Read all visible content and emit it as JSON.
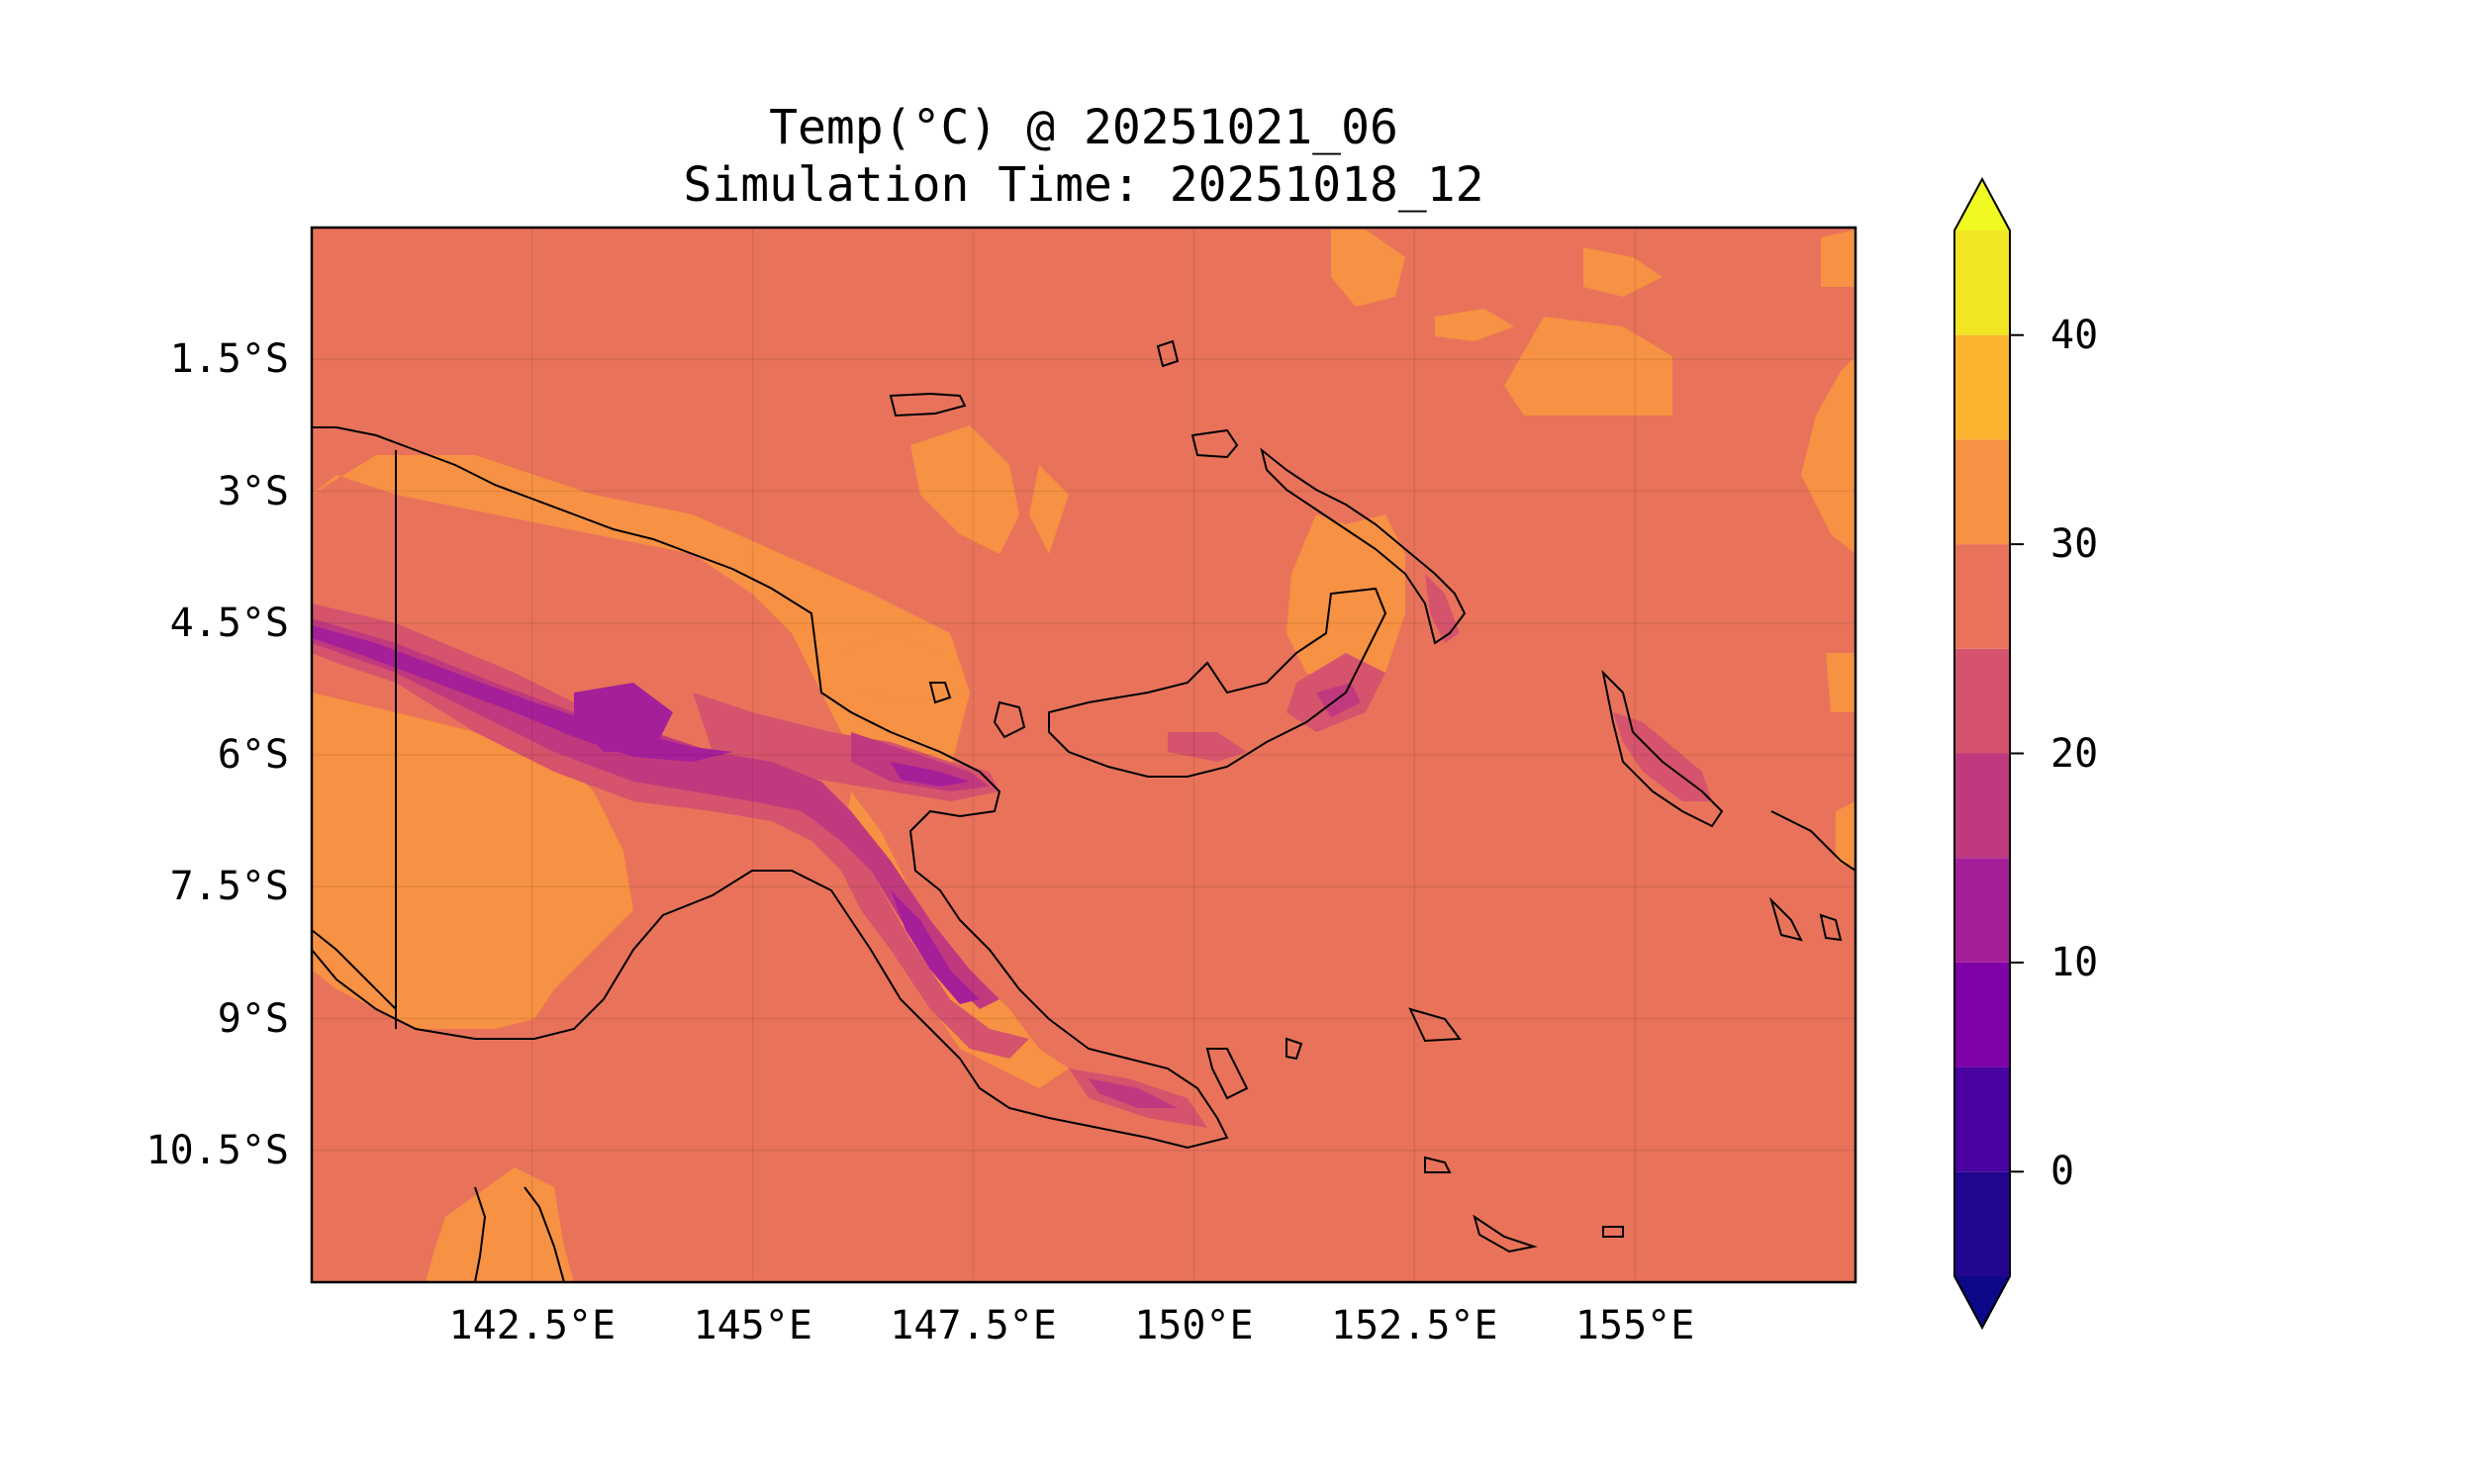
{
  "title_line1": "Temp(°C) @ 20251021_06",
  "title_line2": "Simulation Time: 20251018_12",
  "chart_data": {
    "type": "heatmap",
    "map_extent": {
      "lon": [
        140.0,
        157.5
      ],
      "lat": [
        -12.0,
        0.0
      ]
    },
    "xticks": [
      {
        "value": 142.5,
        "label": "142.5°E"
      },
      {
        "value": 145.0,
        "label": "145°E"
      },
      {
        "value": 147.5,
        "label": "147.5°E"
      },
      {
        "value": 150.0,
        "label": "150°E"
      },
      {
        "value": 152.5,
        "label": "152.5°E"
      },
      {
        "value": 155.0,
        "label": "155°E"
      }
    ],
    "yticks": [
      {
        "value": -1.5,
        "label": "1.5°S"
      },
      {
        "value": -3.0,
        "label": "3°S"
      },
      {
        "value": -4.5,
        "label": "4.5°S"
      },
      {
        "value": -6.0,
        "label": "6°S"
      },
      {
        "value": -7.5,
        "label": "7.5°S"
      },
      {
        "value": -9.0,
        "label": "9°S"
      },
      {
        "value": -10.5,
        "label": "10.5°S"
      }
    ],
    "colorbar": {
      "range": [
        -5,
        45
      ],
      "extend": "both",
      "ticks": [
        {
          "value": 0,
          "label": "0"
        },
        {
          "value": 10,
          "label": "10"
        },
        {
          "value": 20,
          "label": "20"
        },
        {
          "value": 30,
          "label": "30"
        },
        {
          "value": 40,
          "label": "40"
        }
      ],
      "levels": [
        {
          "from": -5,
          "to": 0,
          "color": "#23068f"
        },
        {
          "from": 0,
          "to": 5,
          "color": "#4a02a0"
        },
        {
          "from": 5,
          "to": 10,
          "color": "#7e03a8"
        },
        {
          "from": 10,
          "to": 15,
          "color": "#a51f99"
        },
        {
          "from": 15,
          "to": 20,
          "color": "#c0397f"
        },
        {
          "from": 20,
          "to": 25,
          "color": "#d5536c"
        },
        {
          "from": 25,
          "to": 30,
          "color": "#e8735a"
        },
        {
          "from": 30,
          "to": 35,
          "color": "#f79143"
        },
        {
          "from": 35,
          "to": 40,
          "color": "#fcb32f"
        },
        {
          "from": 40,
          "to": 45,
          "color": "#f1e524"
        }
      ],
      "under_color": "#0d0887",
      "over_color": "#f0f921"
    },
    "grid": true
  }
}
